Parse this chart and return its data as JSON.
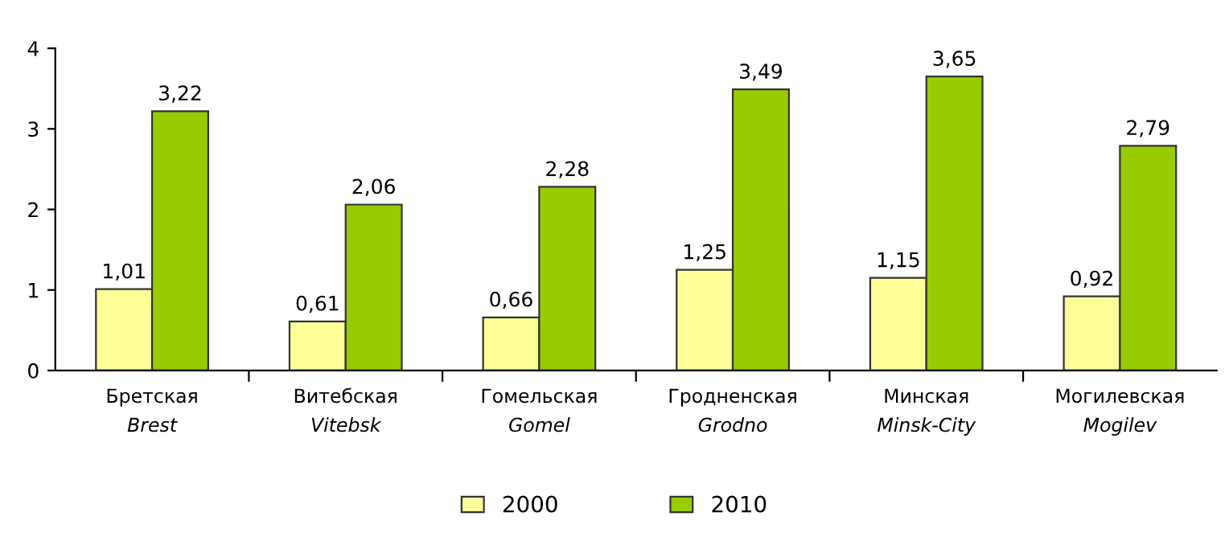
{
  "chart_data": {
    "type": "bar",
    "categories": [
      "Бретская\nBrest",
      "Витебская\nVitebsk",
      "Гомельская\nGomel",
      "Гродненская\nGrodno",
      "Минская\nMinsk-City",
      "Могилевская\nMogilev"
    ],
    "series": [
      {
        "name": "2000",
        "color": "#ffff99",
        "values": [
          1.01,
          0.61,
          0.66,
          1.25,
          1.15,
          0.92
        ],
        "value_labels": [
          "1,01",
          "0,61",
          "0,66",
          "1,25",
          "1,15",
          "0,92"
        ]
      },
      {
        "name": "2010",
        "color": "#99cc00",
        "values": [
          3.22,
          2.06,
          2.28,
          3.49,
          3.65,
          2.79
        ],
        "value_labels": [
          "3,22",
          "2,06",
          "2,28",
          "3,49",
          "3,65",
          "2,79"
        ]
      }
    ],
    "ylim": [
      0,
      4
    ],
    "yticks": [
      0,
      1,
      2,
      3,
      4
    ],
    "grid": false,
    "legend": "bottom"
  }
}
